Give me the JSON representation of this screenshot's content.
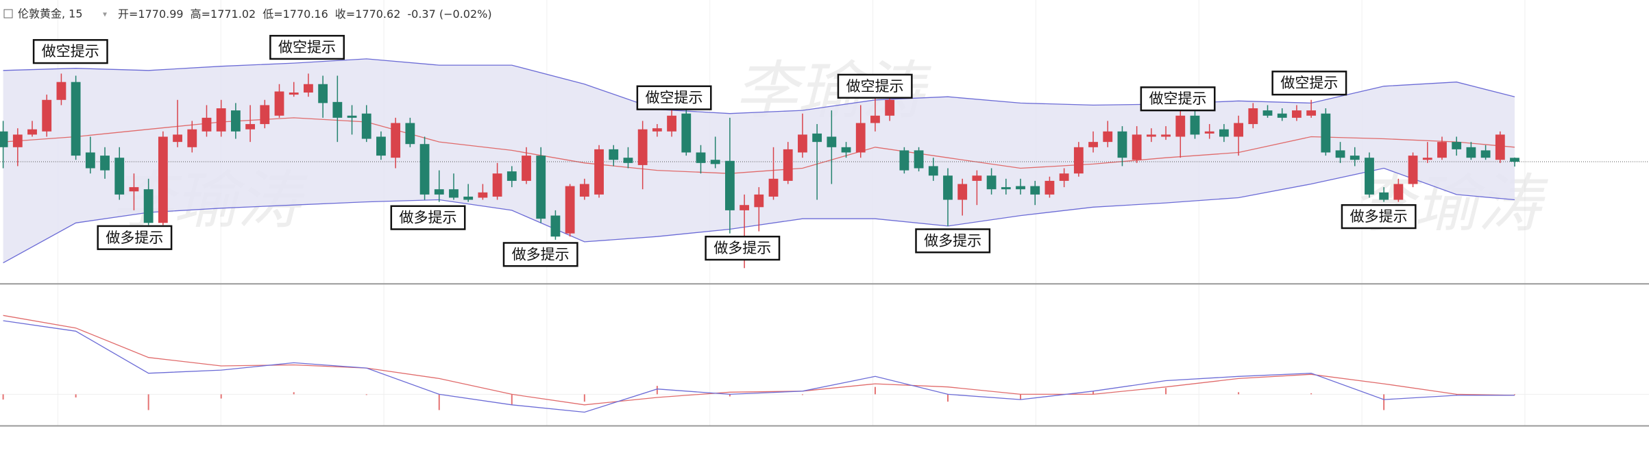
{
  "chart_data": {
    "type": "candlestick",
    "symbol": "伦敦黄金, 15",
    "quote": [
      {
        "label": "开=",
        "value": 1770.99
      },
      {
        "label": "高=",
        "value": 1771.02
      },
      {
        "label": "低=",
        "value": 1770.16
      },
      {
        "label": "收=",
        "value": 1770.62
      }
    ],
    "change": "-0.37 (−0.02%)",
    "watermark": "李瑜涛",
    "up_color": "#d9434b",
    "down_color": "#23826d",
    "ylim": [
      1759,
      1786
    ],
    "ohlc": [
      [
        1773.5,
        1774.5,
        1770,
        1772
      ],
      [
        1772,
        1773.8,
        1770.2,
        1773.2
      ],
      [
        1773.2,
        1774.5,
        1773,
        1773.7
      ],
      [
        1773.5,
        1777,
        1773,
        1776.5
      ],
      [
        1776.5,
        1779,
        1776,
        1778.2
      ],
      [
        1778.2,
        1778.8,
        1770.8,
        1771.2
      ],
      [
        1771.5,
        1773,
        1769.5,
        1770
      ],
      [
        1771.2,
        1772,
        1769,
        1769.8
      ],
      [
        1771,
        1772,
        1767,
        1767.5
      ],
      [
        1767.8,
        1769.5,
        1766,
        1768.2
      ],
      [
        1768,
        1769,
        1764.6,
        1764.8
      ],
      [
        1764.8,
        1773.5,
        1764.6,
        1773
      ],
      [
        1772.5,
        1776.5,
        1772,
        1773.2
      ],
      [
        1772,
        1774.5,
        1771.5,
        1773.7
      ],
      [
        1773.5,
        1776,
        1773,
        1774.8
      ],
      [
        1773.5,
        1776.5,
        1773,
        1775.7
      ],
      [
        1775.5,
        1776.2,
        1772.8,
        1773.5
      ],
      [
        1773.7,
        1776,
        1772.5,
        1774.2
      ],
      [
        1774.2,
        1776.5,
        1773.8,
        1776
      ],
      [
        1775,
        1778,
        1774.8,
        1777.3
      ],
      [
        1777,
        1778.2,
        1776.8,
        1777.2
      ],
      [
        1777.2,
        1779,
        1776.8,
        1778
      ],
      [
        1778,
        1778.8,
        1774.8,
        1776.2
      ],
      [
        1776.3,
        1778.8,
        1772.5,
        1774.8
      ],
      [
        1775,
        1776,
        1773.2,
        1774.8
      ],
      [
        1775.2,
        1776,
        1772.5,
        1772.8
      ],
      [
        1773,
        1773.5,
        1770.8,
        1771.2
      ],
      [
        1771,
        1774.8,
        1770,
        1774.3
      ],
      [
        1774.3,
        1774.8,
        1772,
        1772.3
      ],
      [
        1772.3,
        1773,
        1767,
        1767.5
      ],
      [
        1768,
        1769.8,
        1766.8,
        1767.5
      ],
      [
        1768,
        1769.5,
        1767,
        1767.2
      ],
      [
        1767.3,
        1768.5,
        1766.8,
        1767
      ],
      [
        1767.2,
        1768.5,
        1767,
        1767.7
      ],
      [
        1767.3,
        1770.5,
        1767,
        1769.5
      ],
      [
        1769.7,
        1770.2,
        1768.2,
        1768.8
      ],
      [
        1768.8,
        1772,
        1768.5,
        1771.2
      ],
      [
        1771.2,
        1772,
        1764.8,
        1765.2
      ],
      [
        1765.5,
        1766,
        1763.2,
        1763.5
      ],
      [
        1763.8,
        1768.5,
        1763.5,
        1768.3
      ],
      [
        1767.3,
        1769,
        1767,
        1768.5
      ],
      [
        1767.5,
        1772.2,
        1767.2,
        1771.8
      ],
      [
        1771.8,
        1772.2,
        1770.2,
        1770.8
      ],
      [
        1771,
        1772,
        1770,
        1770.5
      ],
      [
        1770.3,
        1774.5,
        1768,
        1773.7
      ],
      [
        1773.5,
        1774.2,
        1773,
        1773.8
      ],
      [
        1773.5,
        1775.8,
        1773,
        1775
      ],
      [
        1775.2,
        1775.8,
        1771.2,
        1771.5
      ],
      [
        1771.5,
        1772.2,
        1769.5,
        1770.5
      ],
      [
        1770.8,
        1773,
        1770,
        1770.4
      ],
      [
        1770.7,
        1774.8,
        1763.8,
        1766
      ],
      [
        1766,
        1767.5,
        1760.5,
        1766.5
      ],
      [
        1766.3,
        1768.2,
        1764,
        1767.5
      ],
      [
        1767.3,
        1772,
        1767,
        1769
      ],
      [
        1768.8,
        1772.5,
        1768.5,
        1771.8
      ],
      [
        1771.5,
        1775.2,
        1771,
        1773.2
      ],
      [
        1773.3,
        1774.2,
        1767,
        1772.5
      ],
      [
        1773,
        1775.5,
        1768.5,
        1772
      ],
      [
        1772,
        1772.5,
        1771,
        1771.5
      ],
      [
        1771.5,
        1776,
        1771,
        1774.3
      ],
      [
        1774.3,
        1777,
        1773.5,
        1775
      ],
      [
        1775,
        1777.2,
        1774.5,
        1776.5
      ],
      [
        1771.7,
        1772,
        1769.5,
        1769.8
      ],
      [
        1771.7,
        1772,
        1769.7,
        1770
      ],
      [
        1770.2,
        1771,
        1768.8,
        1769.3
      ],
      [
        1769.3,
        1770,
        1764.5,
        1767
      ],
      [
        1767,
        1769,
        1765.5,
        1768.5
      ],
      [
        1768.8,
        1769.8,
        1766.5,
        1769.3
      ],
      [
        1769.3,
        1770,
        1767.5,
        1768
      ],
      [
        1768.2,
        1769,
        1767.5,
        1768
      ],
      [
        1768.3,
        1769,
        1767.5,
        1768
      ],
      [
        1768.3,
        1768.8,
        1766.5,
        1767.5
      ],
      [
        1767.5,
        1769.2,
        1767.2,
        1768.8
      ],
      [
        1768.8,
        1770,
        1768.2,
        1769.5
      ],
      [
        1769.5,
        1772.5,
        1769.2,
        1772
      ],
      [
        1772,
        1773.5,
        1771.5,
        1772.5
      ],
      [
        1772.5,
        1774.5,
        1772,
        1773.5
      ],
      [
        1773.5,
        1774,
        1770.2,
        1771
      ],
      [
        1770.8,
        1774,
        1770.5,
        1773.2
      ],
      [
        1773,
        1773.8,
        1772.5,
        1773.2
      ],
      [
        1773,
        1774,
        1772.7,
        1773.2
      ],
      [
        1773,
        1775.5,
        1771,
        1775
      ],
      [
        1775,
        1775.5,
        1772.8,
        1773.2
      ],
      [
        1773.3,
        1774.2,
        1772.8,
        1773.5
      ],
      [
        1773.7,
        1774.2,
        1772.5,
        1773
      ],
      [
        1773,
        1775,
        1771.2,
        1774.3
      ],
      [
        1774.2,
        1776.2,
        1773.8,
        1775.7
      ],
      [
        1775.5,
        1776,
        1774.8,
        1775
      ],
      [
        1775.2,
        1775.7,
        1774.5,
        1774.8
      ],
      [
        1774.8,
        1776,
        1774.5,
        1775.5
      ],
      [
        1775,
        1776.5,
        1774.8,
        1775.5
      ],
      [
        1775.2,
        1775.7,
        1771.2,
        1771.5
      ],
      [
        1771.7,
        1772.5,
        1770.5,
        1771
      ],
      [
        1771.2,
        1772,
        1770.2,
        1770.8
      ],
      [
        1771,
        1771.5,
        1767.2,
        1767.5
      ],
      [
        1767.7,
        1768.2,
        1766.8,
        1767
      ],
      [
        1767,
        1769,
        1766.8,
        1768.5
      ],
      [
        1768.5,
        1771.5,
        1768.2,
        1771.2
      ],
      [
        1770.8,
        1772.5,
        1770.5,
        1771
      ],
      [
        1771,
        1773,
        1770.8,
        1772.5
      ],
      [
        1772.5,
        1773,
        1771.2,
        1771.8
      ],
      [
        1772,
        1772.5,
        1770.8,
        1771
      ],
      [
        1771.7,
        1772.2,
        1770.8,
        1771
      ],
      [
        1770.8,
        1773.5,
        1770.5,
        1773.2
      ],
      [
        1770.99,
        1771.02,
        1770.16,
        1770.62
      ]
    ],
    "band_x": [
      0,
      5,
      10,
      15,
      20,
      25,
      30,
      35,
      40,
      45,
      50,
      55,
      60,
      65,
      70,
      75,
      80,
      85,
      90,
      95,
      100,
      104
    ],
    "bands": {
      "upper": [
        1779.3,
        1779.5,
        1779.3,
        1779.7,
        1780,
        1780.4,
        1779.8,
        1779.8,
        1778,
        1775.6,
        1775.2,
        1775.5,
        1776.5,
        1776.8,
        1776.2,
        1776,
        1776.1,
        1776.4,
        1776.2,
        1777.8,
        1778.2,
        1776.8
      ],
      "middle": [
        1772.5,
        1773,
        1773.7,
        1774.4,
        1774.8,
        1774.4,
        1772.5,
        1771.7,
        1770.5,
        1769.8,
        1769.5,
        1770,
        1772,
        1771,
        1770,
        1770.4,
        1771,
        1771.5,
        1773,
        1772.8,
        1772.5,
        1772
      ],
      "lower": [
        1761,
        1764.8,
        1765.8,
        1766.2,
        1766.5,
        1766.8,
        1767,
        1766,
        1763,
        1763.5,
        1764.2,
        1765.2,
        1765.2,
        1764.5,
        1765.5,
        1766.3,
        1766.7,
        1767.2,
        1768.5,
        1770,
        1767.5,
        1767
      ]
    },
    "band_color": "#6b6bd6",
    "middle_color": "#e06a6a",
    "band_fill": "#e4e4f3",
    "annotations": [
      "做空提示",
      "做空提示",
      "做空提示",
      "做空提示",
      "做空提示",
      "做空提示",
      "做多提示",
      "做多提示",
      "做多提示",
      "做多提示",
      "做多提示",
      "做多提示"
    ],
    "macd": {
      "ylim": [
        -1.2,
        4
      ],
      "dif": [
        2.8,
        2.4,
        0.8,
        0.92,
        1.2,
        1,
        0,
        -0.4,
        -0.68,
        0.2,
        0,
        0.12,
        0.68,
        0,
        -0.2,
        0.12,
        0.52,
        0.68,
        0.8,
        -0.2,
        -0.04,
        -0.04
      ],
      "dea": [
        3,
        2.52,
        1.4,
        1.08,
        1.12,
        1,
        0.6,
        0,
        -0.4,
        -0.12,
        0.08,
        0.12,
        0.4,
        0.28,
        0,
        0,
        0.28,
        0.6,
        0.76,
        0.4,
        0,
        -0.04
      ],
      "hist": [
        -0.2,
        -0.12,
        -0.6,
        -0.16,
        0.08,
        0,
        -0.6,
        -0.4,
        -0.28,
        0.32,
        -0.08,
        0,
        0.28,
        -0.28,
        -0.2,
        0.12,
        0.24,
        0.08,
        0.04,
        -0.6,
        -0.04,
        0
      ],
      "dif_color": "#6b6bd6",
      "dea_color": "#e06a6a",
      "hist_color": "#e57373"
    }
  }
}
